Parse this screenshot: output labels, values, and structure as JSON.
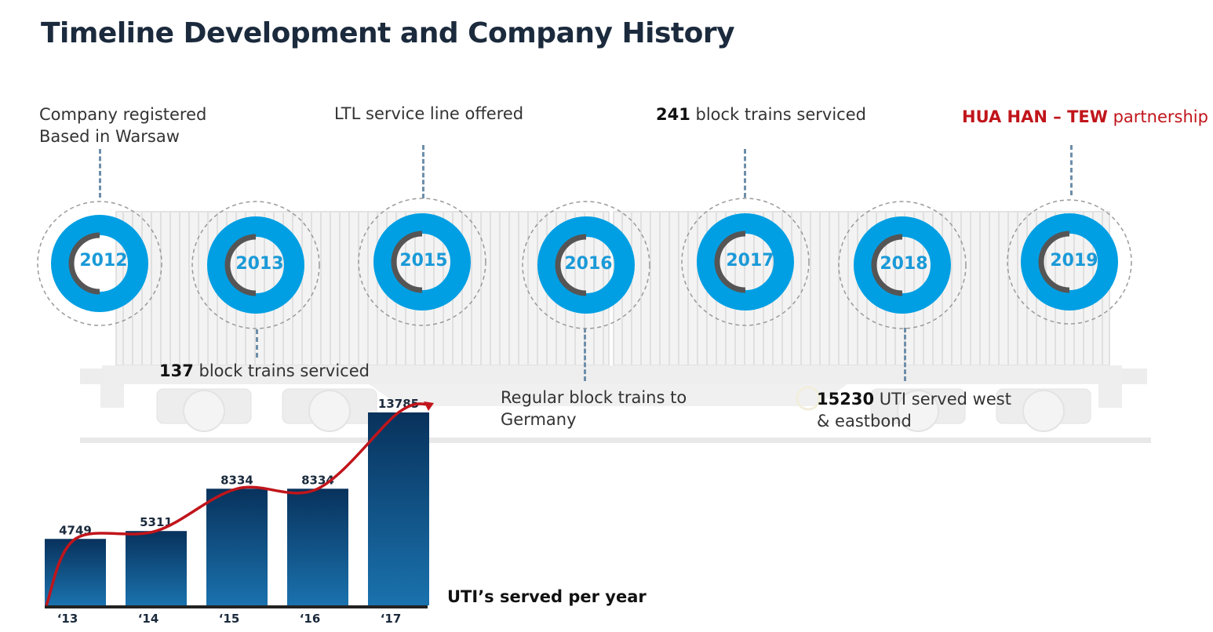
{
  "title": "Timeline Development and Company History",
  "timeline": [
    {
      "year": "2012"
    },
    {
      "year": "2013"
    },
    {
      "year": "2015"
    },
    {
      "year": "2016"
    },
    {
      "year": "2017"
    },
    {
      "year": "2018"
    },
    {
      "year": "2019"
    }
  ],
  "events": {
    "e2012_line1": "Company registered",
    "e2012_line2": "Based in Warsaw",
    "e2013_bold": "137",
    "e2013_text": " block trains serviced",
    "e2015": "LTL service line offered",
    "e2016_line1": "Regular block trains to",
    "e2016_line2": "Germany",
    "e2017_bold": "241",
    "e2017_text": " block trains serviced",
    "e2018_bold": "15230",
    "e2018_text1": " UTI served west",
    "e2018_line2": "& eastbond",
    "e2019_bold": "HUA HAN – TEW",
    "e2019_text": " partnership"
  },
  "chart_caption": "UTI’s served per year",
  "colors": {
    "ring": "#009fe3",
    "bar_top": "#08325c",
    "bar_bottom": "#1a72ae",
    "trend": "#c0151b",
    "highlight": "#c0151b"
  },
  "chart_data": {
    "type": "bar",
    "categories": [
      "‘13",
      "‘14",
      "‘15",
      "‘16",
      "‘17"
    ],
    "values": [
      4749,
      5311,
      8334,
      8334,
      13785
    ],
    "data_labels": [
      "4749",
      "5311",
      "8334",
      "8334",
      "13785"
    ],
    "title": "UTI’s served per year",
    "xlabel": "",
    "ylabel": "",
    "ylim": [
      0,
      13785
    ],
    "trend_line": true,
    "legend": "none",
    "grid": false
  }
}
